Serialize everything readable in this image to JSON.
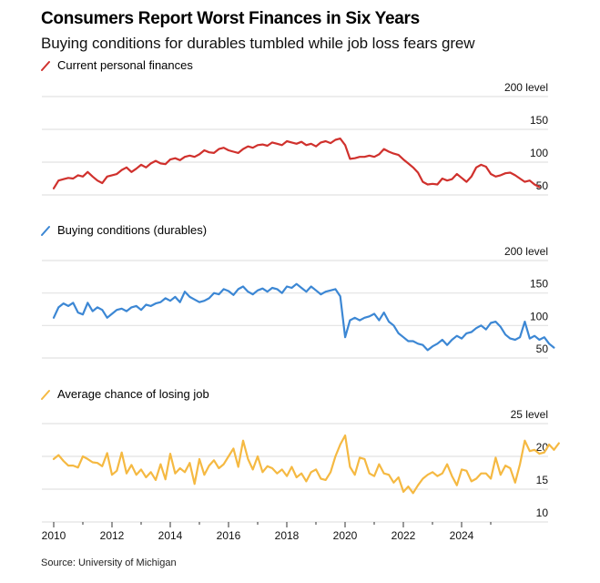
{
  "title": "Consumers Report Worst Finances in Six Years",
  "subtitle": "Buying conditions for durables tumbled while job loss fears grew",
  "source": "Source: University of Michigan",
  "colors": {
    "finances": "#d0312d",
    "durables": "#3c87d4",
    "job_loss": "#f5b942",
    "grid": "#e2e2e2",
    "text": "#111111"
  },
  "chart_data": [
    {
      "type": "line",
      "title": "Current personal finances",
      "legend": "Current personal finances",
      "color_key": "finances",
      "ylabel": "",
      "y_unit_label": "level",
      "ylim": [
        50,
        200
      ],
      "yticks": [
        50,
        100,
        150,
        200
      ],
      "ytick_labels": [
        "50",
        "100",
        "150",
        "200 level"
      ],
      "grid": true,
      "x_start": 2010.0,
      "x_step": 0.1667,
      "values": [
        60,
        72,
        74,
        76,
        75,
        80,
        78,
        85,
        78,
        72,
        68,
        78,
        80,
        82,
        88,
        92,
        85,
        90,
        96,
        92,
        98,
        102,
        98,
        97,
        104,
        106,
        103,
        108,
        110,
        108,
        112,
        118,
        115,
        114,
        120,
        122,
        118,
        116,
        114,
        120,
        124,
        122,
        126,
        127,
        125,
        130,
        128,
        126,
        132,
        130,
        128,
        131,
        126,
        128,
        124,
        130,
        132,
        129,
        134,
        136,
        126,
        105,
        106,
        108,
        108,
        110,
        108,
        112,
        120,
        116,
        113,
        111,
        104,
        98,
        92,
        84,
        70,
        66,
        67,
        66,
        75,
        72,
        74,
        82,
        76,
        70,
        78,
        92,
        96,
        93,
        82,
        78,
        80,
        83,
        84,
        80,
        75,
        70,
        72,
        66,
        62
      ],
      "x_ticks": [
        2010,
        2011,
        2012,
        2013,
        2014,
        2015,
        2016,
        2017,
        2018,
        2019,
        2020,
        2021,
        2022,
        2023,
        2024,
        2025
      ]
    },
    {
      "type": "line",
      "title": "Buying conditions (durables)",
      "legend": "Buying conditions (durables)",
      "color_key": "durables",
      "ylabel": "",
      "y_unit_label": "level",
      "ylim": [
        50,
        200
      ],
      "yticks": [
        50,
        100,
        150,
        200
      ],
      "ytick_labels": [
        "50",
        "100",
        "150",
        "200 level"
      ],
      "grid": true,
      "x_start": 2010.0,
      "x_step": 0.1667,
      "values": [
        112,
        128,
        134,
        130,
        135,
        120,
        117,
        135,
        122,
        128,
        124,
        112,
        118,
        124,
        126,
        122,
        128,
        130,
        124,
        132,
        130,
        134,
        136,
        142,
        138,
        144,
        136,
        152,
        144,
        140,
        136,
        138,
        142,
        150,
        148,
        156,
        153,
        147,
        156,
        160,
        152,
        148,
        154,
        157,
        152,
        158,
        156,
        150,
        160,
        158,
        164,
        158,
        152,
        160,
        154,
        148,
        152,
        154,
        156,
        145,
        82,
        108,
        112,
        108,
        112,
        114,
        118,
        108,
        120,
        106,
        100,
        88,
        82,
        76,
        76,
        72,
        70,
        62,
        68,
        72,
        78,
        70,
        78,
        84,
        80,
        88,
        90,
        96,
        100,
        94,
        104,
        106,
        98,
        86,
        80,
        78,
        82,
        106,
        80,
        84,
        78,
        82,
        72,
        66
      ],
      "x_ticks": [
        2010,
        2011,
        2012,
        2013,
        2014,
        2015,
        2016,
        2017,
        2018,
        2019,
        2020,
        2021,
        2022,
        2023,
        2024,
        2025
      ]
    },
    {
      "type": "line",
      "title": "Average chance of losing job",
      "legend": "Average chance of losing job",
      "color_key": "job_loss",
      "ylabel": "",
      "y_unit_label": "level",
      "ylim": [
        10,
        25
      ],
      "yticks": [
        10,
        15,
        20,
        25
      ],
      "ytick_labels": [
        "10",
        "15",
        "20",
        "25 level"
      ],
      "grid": true,
      "x_start": 2010.0,
      "x_step": 0.1667,
      "values": [
        19.6,
        20.2,
        19.3,
        18.6,
        18.6,
        18.3,
        20.0,
        19.6,
        19.1,
        19.0,
        18.5,
        20.5,
        17.2,
        17.8,
        20.6,
        17.4,
        18.7,
        17.2,
        18.0,
        16.8,
        17.6,
        16.4,
        18.8,
        16.5,
        20.4,
        17.4,
        18.2,
        17.6,
        19.0,
        15.8,
        19.6,
        17.2,
        18.6,
        19.4,
        18.2,
        18.8,
        20.0,
        21.2,
        18.4,
        22.4,
        19.6,
        18.0,
        20.0,
        17.6,
        18.5,
        18.2,
        17.4,
        18.0,
        17.0,
        18.4,
        16.8,
        17.4,
        16.2,
        17.6,
        18.0,
        16.6,
        16.4,
        17.6,
        20.0,
        21.8,
        23.2,
        18.4,
        17.2,
        19.8,
        19.6,
        17.4,
        17.0,
        18.8,
        17.4,
        17.2,
        16.0,
        16.8,
        14.6,
        15.4,
        14.4,
        15.6,
        16.6,
        17.2,
        17.6,
        17.0,
        17.4,
        18.8,
        17.0,
        15.6,
        18.0,
        17.8,
        16.2,
        16.6,
        17.4,
        17.4,
        16.6,
        19.8,
        17.2,
        18.6,
        18.2,
        16.0,
        18.8,
        22.4,
        20.8,
        21.0,
        20.4,
        20.6,
        21.8,
        21.0,
        22.0
      ],
      "x_ticks": [
        2010,
        2011,
        2012,
        2013,
        2014,
        2015,
        2016,
        2017,
        2018,
        2019,
        2020,
        2021,
        2022,
        2023,
        2024,
        2025
      ],
      "x_tick_labels": [
        "2010",
        "2012",
        "2014",
        "2016",
        "2018",
        "2020",
        "2022",
        "2024"
      ]
    }
  ],
  "legend_icon": "slash-line-icon"
}
